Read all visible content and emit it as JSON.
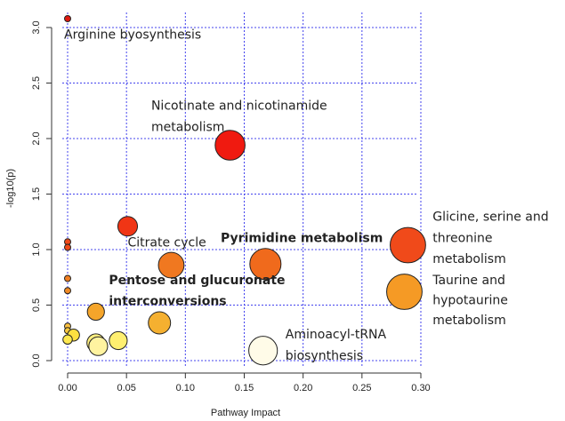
{
  "chart_data": {
    "type": "scatter",
    "title": "",
    "xlabel": "Pathway Impact",
    "ylabel": "-log10(p)",
    "xlim": [
      -0.005,
      0.3
    ],
    "ylim": [
      -0.05,
      3.12
    ],
    "xticks": [
      0.0,
      0.05,
      0.1,
      0.15,
      0.2,
      0.25,
      0.3
    ],
    "xtick_labels": [
      "0.00",
      "0.05",
      "0.10",
      "0.15",
      "0.20",
      "0.25",
      "0.30"
    ],
    "yticks": [
      0.0,
      0.5,
      1.0,
      1.5,
      2.0,
      2.5,
      3.0
    ],
    "ytick_labels": [
      "0.0",
      "0.5",
      "1.0",
      "1.5",
      "2.0",
      "2.5",
      "3.0"
    ],
    "grid": true,
    "grid_color": "#4444ee",
    "points": [
      {
        "x": 0.0,
        "y": 3.08,
        "size": 1,
        "color": "#e01a10"
      },
      {
        "x": 0.138,
        "y": 1.94,
        "size": 7,
        "color": "#f01a10"
      },
      {
        "x": 0.051,
        "y": 1.21,
        "size": 4.6,
        "color": "#f03515"
      },
      {
        "x": 0.0,
        "y": 1.07,
        "size": 1.1,
        "color": "#f04a1a"
      },
      {
        "x": 0.0,
        "y": 1.02,
        "size": 1.1,
        "color": "#f04a1a"
      },
      {
        "x": 0.289,
        "y": 1.04,
        "size": 8.3,
        "color": "#f04a1a"
      },
      {
        "x": 0.168,
        "y": 0.87,
        "size": 7.3,
        "color": "#f06a1c"
      },
      {
        "x": 0.088,
        "y": 0.86,
        "size": 6,
        "color": "#f07820"
      },
      {
        "x": 0.0,
        "y": 0.74,
        "size": 1.2,
        "color": "#f07f22"
      },
      {
        "x": 0.0,
        "y": 0.63,
        "size": 1.2,
        "color": "#f08a25"
      },
      {
        "x": 0.286,
        "y": 0.62,
        "size": 8.3,
        "color": "#f59a25"
      },
      {
        "x": 0.024,
        "y": 0.44,
        "size": 4,
        "color": "#f5a52a"
      },
      {
        "x": 0.078,
        "y": 0.34,
        "size": 5.2,
        "color": "#f5b030"
      },
      {
        "x": 0.0,
        "y": 0.31,
        "size": 1.2,
        "color": "#fac040"
      },
      {
        "x": 0.0,
        "y": 0.27,
        "size": 1.2,
        "color": "#fac83c"
      },
      {
        "x": 0.005,
        "y": 0.23,
        "size": 2.8,
        "color": "#fde040"
      },
      {
        "x": 0.0,
        "y": 0.19,
        "size": 2.2,
        "color": "#fde850"
      },
      {
        "x": 0.043,
        "y": 0.18,
        "size": 4.2,
        "color": "#ffef70"
      },
      {
        "x": 0.024,
        "y": 0.16,
        "size": 4.2,
        "color": "#ffef80"
      },
      {
        "x": 0.026,
        "y": 0.13,
        "size": 4.4,
        "color": "#fff3a0"
      },
      {
        "x": 0.166,
        "y": 0.09,
        "size": 6.7,
        "color": "#fffbe8"
      }
    ],
    "annotations": [
      {
        "text": "Arginine byosynthesis",
        "x": -0.003,
        "y": 2.9,
        "bold": false
      },
      {
        "text": "Nicotinate and nicotinamide",
        "x": 0.071,
        "y": 2.26,
        "bold": false
      },
      {
        "text": "metabolism",
        "x": 0.071,
        "y": 2.07,
        "bold": false
      },
      {
        "text": "Citrate cycle",
        "x": 0.051,
        "y": 1.03,
        "bold": false
      },
      {
        "text": "Pyrimidine metabolism",
        "x": 0.13,
        "y": 1.07,
        "bold": true
      },
      {
        "text": "Glicine, serine and",
        "x": 0.31,
        "y": 1.26,
        "bold": false
      },
      {
        "text": "threonine",
        "x": 0.31,
        "y": 1.07,
        "bold": false
      },
      {
        "text": "metabolism",
        "x": 0.31,
        "y": 0.88,
        "bold": false
      },
      {
        "text": "Pentose and glucuronate",
        "x": 0.035,
        "y": 0.69,
        "bold": true
      },
      {
        "text": "interconversions",
        "x": 0.035,
        "y": 0.5,
        "bold": true
      },
      {
        "text": "Taurine and",
        "x": 0.31,
        "y": 0.69,
        "bold": false
      },
      {
        "text": "hypotaurine",
        "x": 0.31,
        "y": 0.51,
        "bold": false
      },
      {
        "text": "metabolism",
        "x": 0.31,
        "y": 0.33,
        "bold": false
      },
      {
        "text": "Aminoacyl-tRNA",
        "x": 0.185,
        "y": 0.2,
        "bold": false
      },
      {
        "text": "biosynthesis",
        "x": 0.185,
        "y": 0.01,
        "bold": false
      }
    ]
  }
}
